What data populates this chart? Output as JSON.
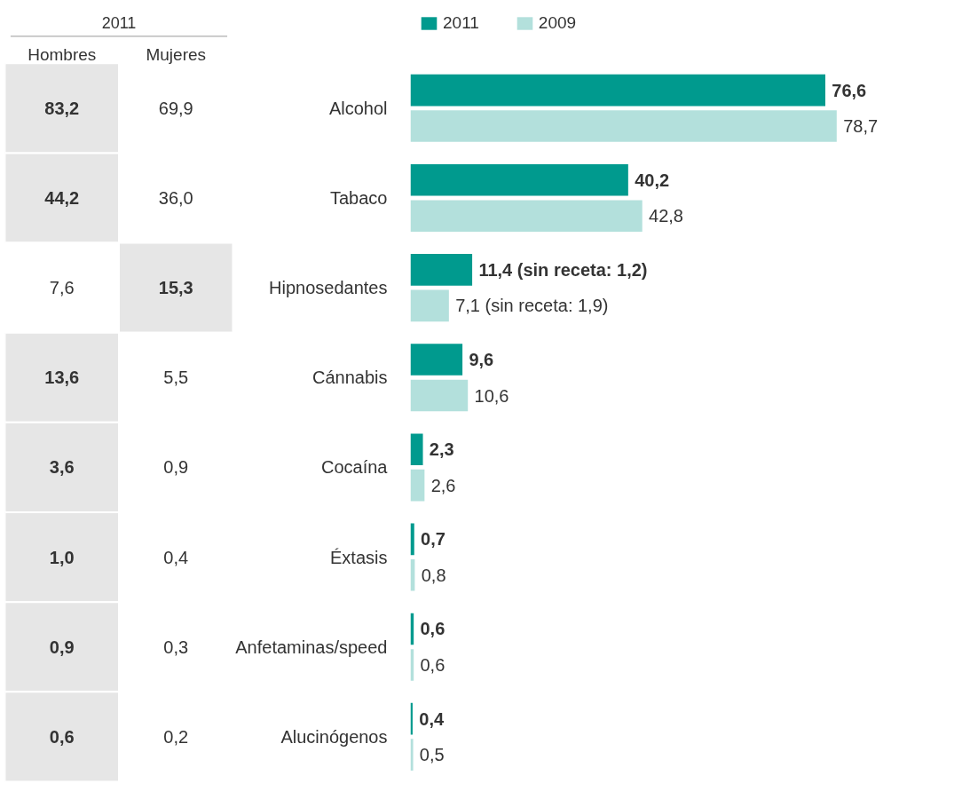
{
  "chart_data": [
    {
      "type": "heatmap",
      "title": "2011",
      "categories": [
        "Hombres",
        "Mujeres"
      ],
      "y_categories": [
        null,
        null,
        null,
        null,
        null,
        null,
        null,
        null
      ],
      "cells": [
        [
          83.2,
          69.9
        ],
        [
          44.2,
          36.0
        ],
        [
          7.6,
          15.3
        ],
        [
          13.6,
          5.5
        ],
        [
          3.6,
          0.9
        ],
        [
          1.0,
          0.4
        ],
        [
          0.9,
          0.3
        ],
        [
          0.6,
          0.2
        ]
      ],
      "cell_labels": [
        [
          "83,2",
          "69,9"
        ],
        [
          "44,2",
          "36,0"
        ],
        [
          "7,6",
          "15,3"
        ],
        [
          "13,6",
          "5,5"
        ],
        [
          "3,6",
          "0,9"
        ],
        [
          "1,0",
          "0,4"
        ],
        [
          "0,9",
          "0,3"
        ],
        [
          "0,6",
          "0,2"
        ]
      ]
    },
    {
      "type": "bar",
      "orientation": "horizontal",
      "categories": [
        "Alcohol",
        "Tabaco",
        "Hipnosedantes",
        "Cánnabis",
        "Cocaína",
        "Éxtasis",
        "Anfetaminas/speed",
        "Alucinógenos"
      ],
      "series": [
        {
          "name": "2011",
          "color": "#009a8e",
          "values": [
            76.6,
            40.2,
            11.4,
            9.6,
            2.3,
            0.7,
            0.6,
            0.4
          ],
          "value_labels": [
            "76,6",
            "40,2",
            "11,4 (sin receta: 1,2)",
            "9,6",
            "2,3",
            "0,7",
            "0,6",
            "0,4"
          ]
        },
        {
          "name": "2009",
          "color": "#b3e0dc",
          "values": [
            78.7,
            42.8,
            7.1,
            10.6,
            2.6,
            0.8,
            0.6,
            0.5
          ],
          "value_labels": [
            "78,7",
            "42,8",
            "7,1  (sin receta: 1,9)",
            "10,6",
            "2,6",
            "0,8",
            "0,6",
            "0,5"
          ]
        }
      ],
      "tick_labels": false,
      "grid": false,
      "legend": "top left"
    }
  ]
}
